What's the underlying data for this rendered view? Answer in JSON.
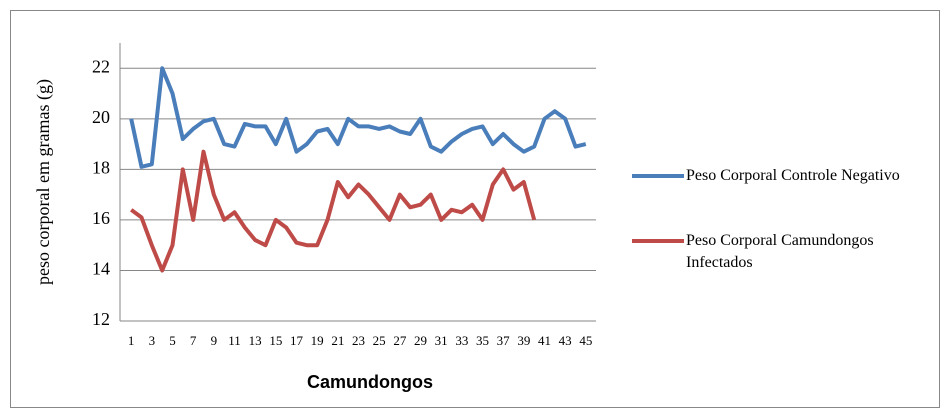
{
  "chart_data": {
    "type": "line",
    "x_label": "Camundongos",
    "y_label": "peso corporal em gramas (g)",
    "categories": [
      1,
      null,
      3,
      null,
      5,
      null,
      7,
      null,
      9,
      null,
      11,
      null,
      13,
      null,
      15,
      null,
      17,
      null,
      19,
      null,
      21,
      null,
      23,
      null,
      25,
      null,
      27,
      null,
      29,
      null,
      31,
      null,
      33,
      null,
      35,
      null,
      37,
      null,
      39,
      null,
      41,
      null,
      43,
      null,
      45
    ],
    "series": [
      {
        "name": "Peso Corporal Controle Negativo",
        "color": "#4a7ebb",
        "values": [
          20,
          18.1,
          18.2,
          22,
          21,
          19.2,
          19.6,
          19.9,
          20,
          19,
          18.9,
          19.8,
          19.7,
          19.7,
          19,
          20,
          18.7,
          19,
          19.5,
          19.6,
          19,
          20,
          19.7,
          19.7,
          19.6,
          19.7,
          19.5,
          19.4,
          20,
          18.9,
          18.7,
          19.1,
          19.4,
          19.6,
          19.7,
          19,
          19.4,
          19,
          18.7,
          18.9,
          20,
          20.3,
          20,
          18.9,
          19
        ]
      },
      {
        "name": "Peso Corporal Camundongos Infectados",
        "color": "#be4b48",
        "values": [
          16.4,
          16.1,
          15,
          14,
          15,
          18,
          16,
          18.7,
          17,
          16,
          16.3,
          15.7,
          15.2,
          15,
          16,
          15.7,
          15.1,
          15,
          15,
          16,
          17.5,
          16.9,
          17.4,
          17,
          16.5,
          16,
          17,
          16.5,
          16.6,
          17,
          16,
          16.4,
          16.3,
          16.6,
          16,
          17.4,
          18,
          17.2,
          17.5,
          16,
          null,
          null,
          null,
          null,
          null
        ]
      }
    ],
    "ylim": [
      12,
      23
    ],
    "yticks": [
      12,
      14,
      16,
      18,
      20,
      22
    ],
    "grid": true,
    "legend": "right"
  }
}
